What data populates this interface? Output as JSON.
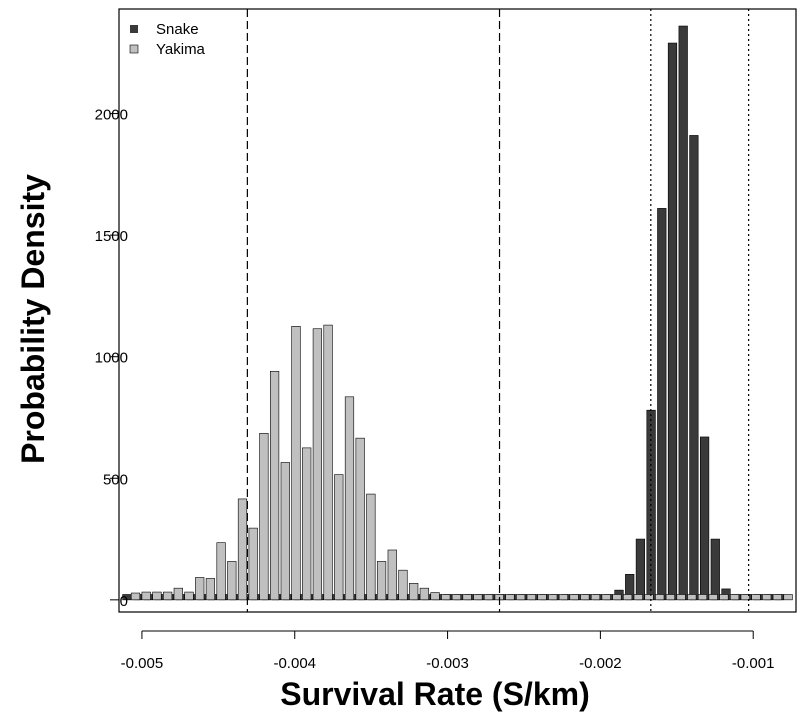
{
  "chart_data": {
    "type": "bar",
    "xlabel": "Survival Rate (S/km)",
    "ylabel": "Probability Density",
    "xlim": [
      -0.00515,
      -0.00072
    ],
    "ylim": [
      -50,
      2430
    ],
    "x_ticks": [
      -0.005,
      -0.004,
      -0.003,
      -0.002,
      -0.001
    ],
    "x_tick_labels": [
      "-0.005",
      "-0.004",
      "-0.003",
      "-0.002",
      "-0.001"
    ],
    "y_ticks": [
      0,
      500,
      1000,
      1500,
      2000
    ],
    "y_tick_labels": [
      "0",
      "500",
      "1000",
      "1500",
      "2000"
    ],
    "legend_position": "top-left",
    "grid": false,
    "series": [
      {
        "name": "Snake",
        "color": "#3a3a3a",
        "x": [
          -0.00507,
          -0.005,
          -0.00493,
          -0.00486,
          -0.00479,
          -0.00472,
          -0.00465,
          -0.00458,
          -0.00451,
          -0.00444,
          -0.00437,
          -0.0043,
          -0.00423,
          -0.00416,
          -0.00409,
          -0.00402,
          -0.00395,
          -0.00388,
          -0.00381,
          -0.00374,
          -0.00367,
          -0.0036,
          -0.00353,
          -0.00346,
          -0.00339,
          -0.00332,
          -0.00325,
          -0.00318,
          -0.00311,
          -0.00304,
          -0.00297,
          -0.0029,
          -0.00283,
          -0.00276,
          -0.00269,
          -0.00262,
          -0.00255,
          -0.00248,
          -0.00241,
          -0.00234,
          -0.00227,
          -0.0022,
          -0.00213,
          -0.00206,
          -0.00199,
          -0.00192,
          -0.00185,
          -0.00178,
          -0.00171,
          -0.00164,
          -0.00157,
          -0.0015,
          -0.00143,
          -0.00136,
          -0.00129,
          -0.00122,
          -0.00115,
          -0.00108,
          -0.00101,
          -0.00094,
          -0.00087,
          -0.0008
        ],
        "values": [
          22,
          22,
          22,
          22,
          22,
          22,
          22,
          22,
          22,
          22,
          22,
          22,
          22,
          22,
          22,
          22,
          22,
          22,
          22,
          22,
          22,
          22,
          22,
          22,
          22,
          22,
          22,
          22,
          22,
          22,
          22,
          22,
          22,
          22,
          22,
          22,
          22,
          22,
          22,
          22,
          22,
          22,
          22,
          22,
          22,
          22,
          40,
          105,
          250,
          780,
          1610,
          2290,
          2360,
          1910,
          670,
          250,
          45,
          22,
          22,
          22,
          22,
          22
        ]
      },
      {
        "name": "Yakima",
        "color": "#c0c0c0",
        "x": [
          -0.00507,
          -0.005,
          -0.00493,
          -0.00486,
          -0.00479,
          -0.00472,
          -0.00465,
          -0.00458,
          -0.00451,
          -0.00444,
          -0.00437,
          -0.0043,
          -0.00423,
          -0.00416,
          -0.00409,
          -0.00402,
          -0.00395,
          -0.00388,
          -0.00381,
          -0.00374,
          -0.00367,
          -0.0036,
          -0.00353,
          -0.00346,
          -0.00339,
          -0.00332,
          -0.00325,
          -0.00318,
          -0.00311,
          -0.00304,
          -0.00297,
          -0.0029,
          -0.00283,
          -0.00276,
          -0.00269,
          -0.00262,
          -0.00255,
          -0.00248,
          -0.00241,
          -0.00234,
          -0.00227,
          -0.0022,
          -0.00213,
          -0.00206,
          -0.00199,
          -0.00192,
          -0.00185,
          -0.00178,
          -0.00171,
          -0.00164,
          -0.00157,
          -0.0015,
          -0.00143,
          -0.00136,
          -0.00129,
          -0.00122,
          -0.00115,
          -0.00108,
          -0.00101,
          -0.00094,
          -0.00087,
          -0.0008
        ],
        "values": [
          28,
          32,
          32,
          32,
          48,
          32,
          92,
          88,
          235,
          158,
          415,
          295,
          685,
          940,
          565,
          1125,
          625,
          1115,
          1130,
          515,
          835,
          665,
          435,
          158,
          205,
          122,
          68,
          48,
          30,
          22,
          22,
          22,
          22,
          22,
          22,
          22,
          22,
          22,
          22,
          22,
          22,
          22,
          22,
          22,
          22,
          22,
          22,
          22,
          22,
          22,
          22,
          22,
          22,
          22,
          22,
          22,
          22,
          22,
          22,
          22,
          22,
          22
        ]
      }
    ],
    "reference_lines": [
      {
        "x": -0.00431,
        "style": "dashed"
      },
      {
        "x": -0.00266,
        "style": "dashed"
      },
      {
        "x": -0.00167,
        "style": "dotted"
      },
      {
        "x": -0.00103,
        "style": "dotted"
      }
    ]
  }
}
